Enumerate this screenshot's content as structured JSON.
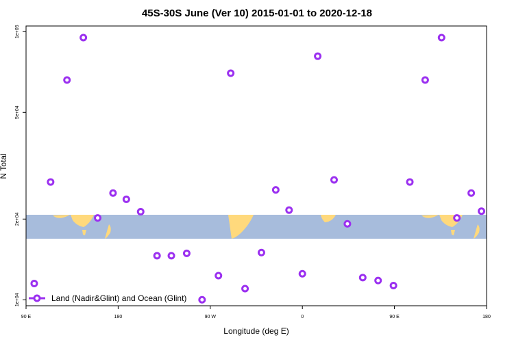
{
  "chart_data": {
    "type": "scatter",
    "title": "45S-30S June (Ver 10)   2015-01-01 to 2020-12-18",
    "xlabel": "Longitude (deg E)",
    "ylabel": "N Total",
    "x_scale": "linear",
    "y_scale": "log",
    "xlim": [
      90,
      540
    ],
    "ylim": [
      9500,
      105000
    ],
    "x_ticks": [
      {
        "value": 90,
        "label": "90 E"
      },
      {
        "value": 180,
        "label": "180"
      },
      {
        "value": 270,
        "label": "90 W"
      },
      {
        "value": 360,
        "label": "0"
      },
      {
        "value": 450,
        "label": "90 E"
      },
      {
        "value": 540,
        "label": "180"
      }
    ],
    "y_ticks": [
      {
        "value": 10000,
        "label": "1e+04"
      },
      {
        "value": 20000,
        "label": "2e+04"
      },
      {
        "value": 50000,
        "label": "5e+04"
      },
      {
        "value": 100000,
        "label": "1e+05"
      }
    ],
    "grid": false,
    "legend_position": "bottom-left",
    "map_band": {
      "lat_range": "45S-30S",
      "ocean_color": "#a7bcdc",
      "land_color": "#ffd97c"
    },
    "series": [
      {
        "name": "Land (Nadir&Glint) and Ocean (Glint)",
        "color": "#9b30f0",
        "x": [
          98,
          114,
          130,
          146,
          160,
          175,
          188,
          202,
          218,
          232,
          247,
          262,
          278,
          290,
          304,
          320,
          334,
          347,
          360,
          375,
          391,
          404,
          419,
          434,
          449,
          465,
          480,
          496,
          511,
          525,
          535
        ],
        "y": [
          11500,
          27500,
          66000,
          95000,
          20200,
          25000,
          23700,
          21300,
          14600,
          14600,
          14900,
          10000,
          12300,
          70000,
          11000,
          15000,
          25700,
          21600,
          12500,
          81000,
          28000,
          19200,
          12100,
          11800,
          11300,
          27500,
          66000,
          95000,
          20200,
          25000,
          21400
        ]
      }
    ]
  }
}
